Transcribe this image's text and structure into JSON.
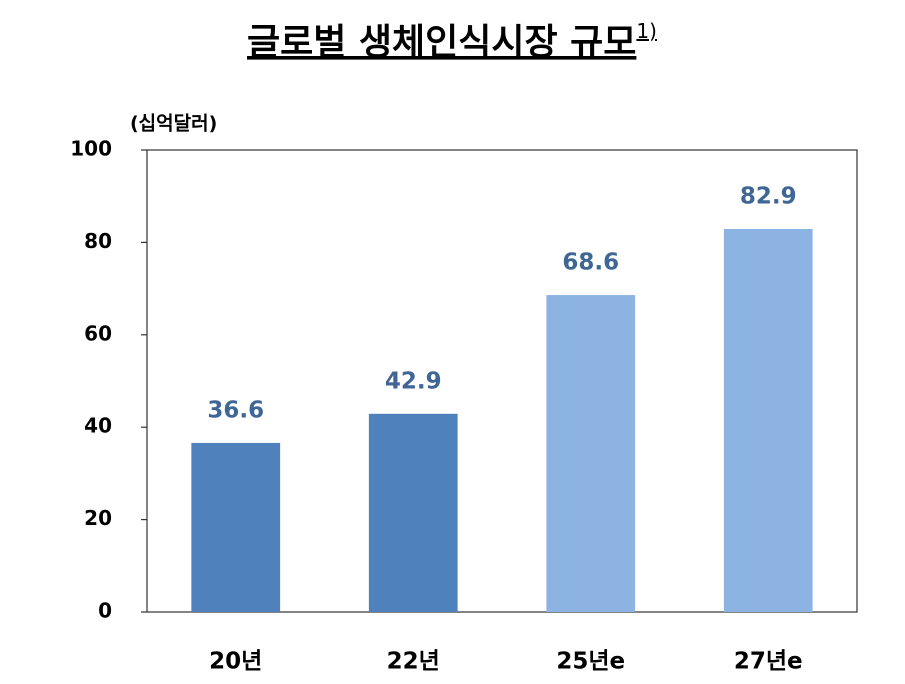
{
  "chart_data": {
    "type": "bar",
    "title": "글로벌 생체인식시장 규모",
    "title_note": "1)",
    "y_unit_label": "(십억달러)",
    "categories": [
      "20년",
      "22년",
      "25년e",
      "27년e"
    ],
    "values": [
      36.6,
      42.9,
      68.6,
      82.9
    ],
    "colors": [
      "#4f81bd",
      "#4f81bd",
      "#8db3e2",
      "#8db3e2"
    ],
    "label_color": "#3f6695",
    "ylim": [
      0,
      100
    ],
    "yticks": [
      0,
      20,
      40,
      60,
      80,
      100
    ],
    "grid": false
  }
}
